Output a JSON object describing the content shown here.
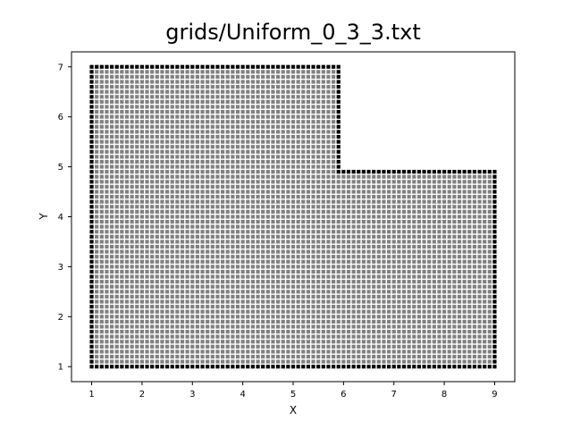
{
  "chart_data": {
    "type": "scatter",
    "title": "grids/Uniform_0_3_3.txt",
    "xlabel": "X",
    "ylabel": "Y",
    "xlim": [
      0.6,
      9.4
    ],
    "ylim": [
      0.7,
      7.3
    ],
    "xticks": [
      "1",
      "2",
      "3",
      "4",
      "5",
      "6",
      "7",
      "8",
      "9"
    ],
    "yticks": [
      "1",
      "2",
      "3",
      "4",
      "5",
      "6",
      "7"
    ],
    "grid": false,
    "grid_spacing": 0.1,
    "interior_color": "#808080",
    "boundary_color": "#000000",
    "domain": {
      "shape": "L-shape",
      "outer_corners": [
        [
          1,
          1
        ],
        [
          9,
          1
        ],
        [
          9,
          4.9
        ],
        [
          5.9,
          4.9
        ],
        [
          5.9,
          7
        ],
        [
          1,
          7
        ]
      ],
      "interior_full_region": {
        "x": [
          1,
          9
        ],
        "y": [
          1,
          7
        ]
      }
    }
  }
}
